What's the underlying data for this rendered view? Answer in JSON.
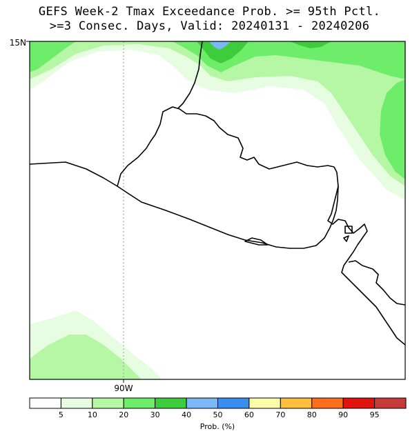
{
  "title": {
    "line1": "GEFS Week-2 Tmax Exceedance Prob. >= 95th Pctl.",
    "line2": ">=3 Consec. Days, Valid: 20240131 - 20240206"
  },
  "map": {
    "lat_label": "15N",
    "lon_label": "90W",
    "meridian_gridline": true,
    "region": "El Salvador and surrounding Central America"
  },
  "colorbar": {
    "label": "Prob. (%)",
    "tick_labels": [
      "5",
      "10",
      "20",
      "30",
      "40",
      "50",
      "60",
      "70",
      "80",
      "90",
      "95"
    ],
    "colors": [
      "#ffffff",
      "#e6fde1",
      "#b5f7a5",
      "#6ded69",
      "#3ccc3c",
      "#7bb8f8",
      "#3a8ef0",
      "#fdfca7",
      "#fdc03c",
      "#fc6d1c",
      "#e0140e",
      "#c63a3a"
    ]
  },
  "fields": {
    "band_5_10": "#e6fde1",
    "band_10_20": "#b5f7a5",
    "band_20_30": "#6ded69",
    "band_30_40": "#3ccc3c",
    "band_40_50": "#7bb8f8"
  }
}
